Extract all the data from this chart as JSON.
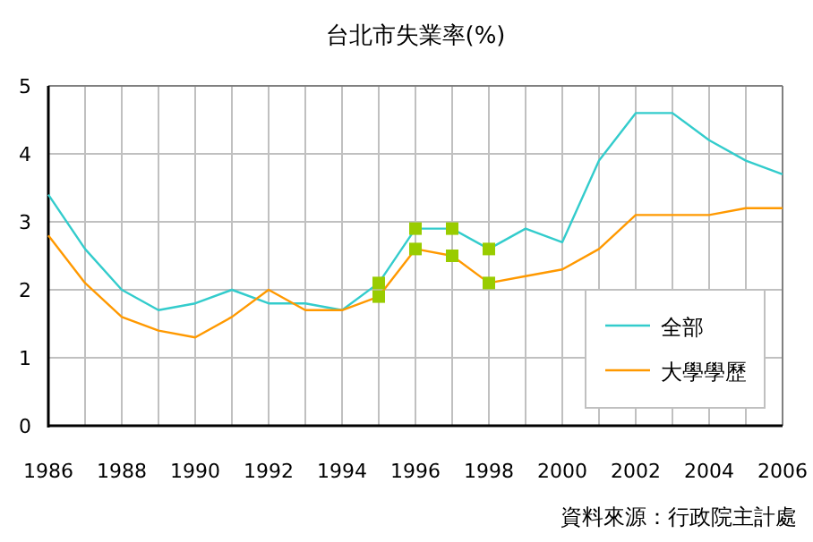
{
  "chart_data": {
    "type": "line",
    "title": "台北市失業率(%)",
    "annotations": [
      "資料來源：行政院主計處"
    ],
    "x": [
      1986,
      1987,
      1988,
      1989,
      1990,
      1991,
      1992,
      1993,
      1994,
      1995,
      1996,
      1997,
      1998,
      1999,
      2000,
      2001,
      2002,
      2003,
      2004,
      2005,
      2006
    ],
    "series": [
      {
        "name": "全部",
        "color": "#33cccc",
        "values": [
          3.4,
          2.6,
          2.0,
          1.7,
          1.8,
          2.0,
          1.8,
          1.8,
          1.7,
          2.1,
          2.9,
          2.9,
          2.6,
          2.9,
          2.7,
          3.9,
          4.6,
          4.6,
          4.2,
          3.9,
          3.7
        ]
      },
      {
        "name": "大學學歷",
        "color": "#ff9900",
        "values": [
          2.8,
          2.1,
          1.6,
          1.4,
          1.3,
          1.6,
          2.0,
          1.7,
          1.7,
          1.9,
          2.6,
          2.5,
          2.1,
          2.2,
          2.3,
          2.6,
          3.1,
          3.1,
          3.1,
          3.2,
          3.2
        ]
      },
      {
        "type": "scatter",
        "marker": "square",
        "color": "#99cc00",
        "x": [
          1995,
          1996,
          1997,
          1998
        ],
        "values": [
          2.1,
          2.9,
          2.9,
          2.6
        ]
      },
      {
        "type": "scatter",
        "marker": "square",
        "color": "#99cc00",
        "x": [
          1995,
          1996,
          1997,
          1998
        ],
        "values": [
          1.9,
          2.6,
          2.5,
          2.1
        ]
      }
    ],
    "xlim": [
      1986,
      2006
    ],
    "xticks": [
      1986,
      {
        "value": 1987,
        "label": null
      },
      1988,
      {
        "value": 1989,
        "label": null
      },
      1990,
      {
        "value": 1991,
        "label": null
      },
      1992,
      {
        "value": 1993,
        "label": null
      },
      1994,
      {
        "value": 1995,
        "label": null
      },
      1996,
      {
        "value": 1997,
        "label": null
      },
      1998,
      {
        "value": 1999,
        "label": null
      },
      2000,
      {
        "value": 2001,
        "label": null
      },
      2002,
      {
        "value": 2003,
        "label": null
      },
      2004,
      {
        "value": 2005,
        "label": null
      },
      2006
    ],
    "ylim": [
      0,
      5
    ],
    "yticks": [
      0,
      1,
      2,
      3,
      4,
      5
    ],
    "grid": true,
    "legend": "bottom right"
  }
}
